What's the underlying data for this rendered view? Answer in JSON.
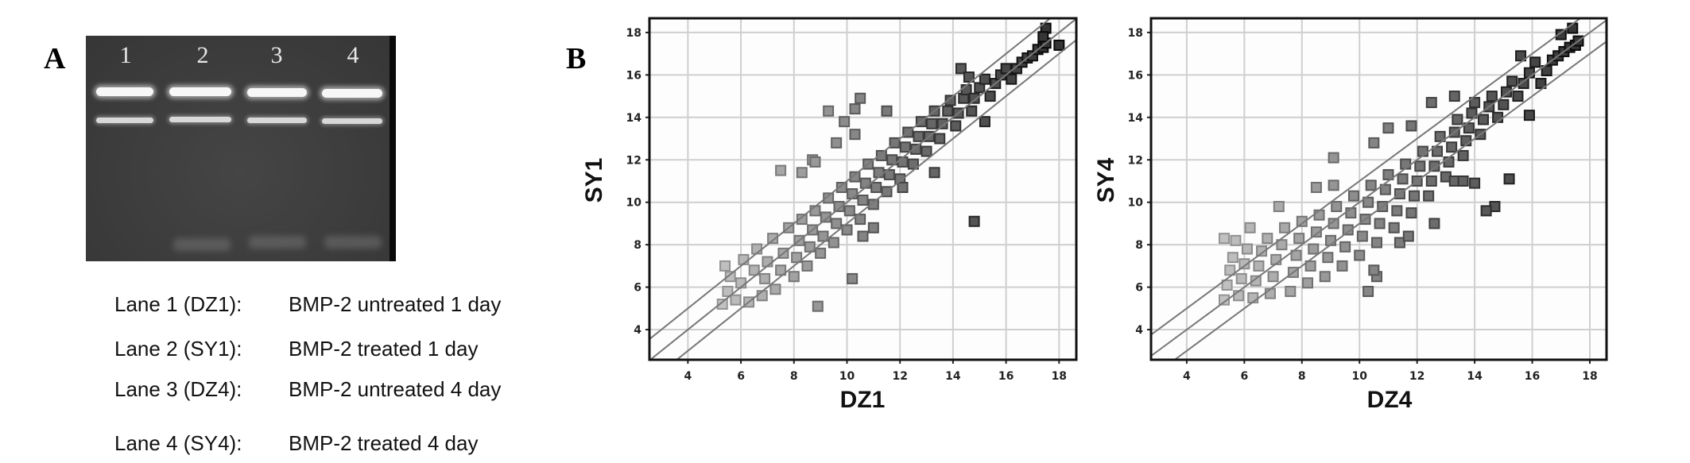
{
  "panel_a": {
    "label": "A",
    "lane_numbers": [
      "1",
      "2",
      "3",
      "4"
    ],
    "legend": [
      {
        "lane": "Lane 1 (DZ1):",
        "desc": "BMP-2 untreated 1 day"
      },
      {
        "lane": "Lane 2 (SY1):",
        "desc": "BMP-2 treated 1 day"
      },
      {
        "lane": "Lane 3 (DZ4):",
        "desc": "BMP-2 untreated 4 day"
      },
      {
        "lane": "Lane 4 (SY4):",
        "desc": "BMP-2 treated 4 day"
      }
    ]
  },
  "panel_b": {
    "label": "B"
  },
  "chart_data": [
    {
      "type": "scatter",
      "xlabel": "DZ1",
      "ylabel": "SY1",
      "xlim": [
        2.55,
        18.65
      ],
      "ylim": [
        2.58,
        18.67
      ],
      "xticks": [
        4,
        6,
        8,
        10,
        12,
        14,
        16,
        18
      ],
      "yticks": [
        4,
        6,
        8,
        10,
        12,
        14,
        16,
        18
      ],
      "grid": true,
      "reference_lines": [
        {
          "slope": 1,
          "intercept": 1
        },
        {
          "slope": 1,
          "intercept": 0
        },
        {
          "slope": 1,
          "intercept": -1
        }
      ],
      "marker": "square",
      "color_low": "#c4c4c4",
      "color_high": "#353535",
      "points": [
        [
          5.3,
          5.2
        ],
        [
          5.5,
          5.8
        ],
        [
          5.6,
          6.5
        ],
        [
          5.4,
          7.0
        ],
        [
          5.8,
          5.4
        ],
        [
          6.0,
          6.2
        ],
        [
          6.1,
          7.3
        ],
        [
          6.3,
          5.3
        ],
        [
          6.5,
          6.8
        ],
        [
          6.6,
          7.8
        ],
        [
          6.8,
          5.6
        ],
        [
          6.9,
          6.4
        ],
        [
          7.0,
          7.2
        ],
        [
          7.2,
          8.3
        ],
        [
          7.3,
          5.9
        ],
        [
          7.5,
          6.8
        ],
        [
          7.6,
          7.6
        ],
        [
          7.8,
          8.8
        ],
        [
          8.0,
          6.5
        ],
        [
          8.1,
          7.4
        ],
        [
          8.2,
          8.2
        ],
        [
          8.3,
          9.2
        ],
        [
          8.5,
          7.0
        ],
        [
          8.6,
          7.9
        ],
        [
          8.7,
          8.7
        ],
        [
          8.8,
          9.6
        ],
        [
          9.0,
          7.6
        ],
        [
          9.1,
          8.4
        ],
        [
          9.2,
          9.3
        ],
        [
          9.3,
          10.2
        ],
        [
          9.5,
          8.1
        ],
        [
          9.6,
          9.0
        ],
        [
          9.7,
          9.8
        ],
        [
          9.8,
          10.7
        ],
        [
          10.0,
          8.7
        ],
        [
          10.1,
          9.6
        ],
        [
          10.2,
          10.4
        ],
        [
          10.3,
          11.2
        ],
        [
          10.5,
          9.2
        ],
        [
          10.6,
          10.1
        ],
        [
          10.7,
          10.9
        ],
        [
          10.8,
          11.8
        ],
        [
          11.0,
          9.9
        ],
        [
          11.1,
          10.7
        ],
        [
          11.2,
          11.4
        ],
        [
          11.3,
          12.2
        ],
        [
          11.5,
          10.5
        ],
        [
          11.6,
          11.3
        ],
        [
          11.7,
          12.0
        ],
        [
          11.8,
          12.8
        ],
        [
          12.0,
          11.1
        ],
        [
          12.1,
          11.9
        ],
        [
          12.2,
          12.6
        ],
        [
          12.3,
          13.3
        ],
        [
          12.5,
          11.8
        ],
        [
          12.6,
          12.5
        ],
        [
          12.7,
          13.1
        ],
        [
          12.8,
          13.8
        ],
        [
          13.0,
          12.4
        ],
        [
          13.1,
          13.1
        ],
        [
          13.2,
          13.7
        ],
        [
          13.3,
          14.3
        ],
        [
          13.5,
          13.0
        ],
        [
          13.6,
          13.7
        ],
        [
          13.8,
          14.3
        ],
        [
          13.9,
          14.8
        ],
        [
          14.1,
          13.6
        ],
        [
          14.2,
          14.2
        ],
        [
          14.4,
          14.9
        ],
        [
          14.5,
          15.3
        ],
        [
          14.7,
          14.3
        ],
        [
          14.8,
          14.9
        ],
        [
          15.0,
          15.4
        ],
        [
          15.2,
          15.8
        ],
        [
          15.4,
          15.0
        ],
        [
          15.6,
          15.6
        ],
        [
          15.8,
          16.0
        ],
        [
          16.0,
          16.3
        ],
        [
          16.2,
          15.8
        ],
        [
          16.4,
          16.3
        ],
        [
          16.6,
          16.6
        ],
        [
          16.8,
          16.8
        ],
        [
          17.0,
          16.9
        ],
        [
          17.2,
          17.2
        ],
        [
          17.4,
          17.3
        ],
        [
          17.5,
          17.5
        ],
        [
          7.5,
          11.5
        ],
        [
          8.7,
          12.0
        ],
        [
          9.3,
          14.3
        ],
        [
          9.9,
          13.8
        ],
        [
          10.3,
          14.4
        ],
        [
          10.5,
          14.9
        ],
        [
          10.3,
          13.2
        ],
        [
          9.6,
          12.8
        ],
        [
          8.8,
          11.9
        ],
        [
          8.3,
          11.4
        ],
        [
          11.5,
          14.3
        ],
        [
          14.3,
          16.3
        ],
        [
          14.6,
          15.9
        ],
        [
          15.2,
          13.8
        ],
        [
          13.3,
          11.4
        ],
        [
          14.8,
          9.1
        ],
        [
          10.2,
          6.4
        ],
        [
          8.9,
          5.1
        ],
        [
          12.1,
          10.7
        ],
        [
          17.5,
          18.2
        ],
        [
          17.4,
          17.8
        ],
        [
          18.0,
          17.4
        ],
        [
          10.6,
          8.4
        ],
        [
          11.0,
          8.8
        ]
      ]
    },
    {
      "type": "scatter",
      "xlabel": "DZ4",
      "ylabel": "SY4",
      "xlim": [
        2.76,
        18.58
      ],
      "ylim": [
        2.58,
        18.67
      ],
      "xticks": [
        4,
        6,
        8,
        10,
        12,
        14,
        16,
        18
      ],
      "yticks": [
        4,
        6,
        8,
        10,
        12,
        14,
        16,
        18
      ],
      "grid": true,
      "reference_lines": [
        {
          "slope": 1,
          "intercept": 1
        },
        {
          "slope": 1,
          "intercept": 0
        },
        {
          "slope": 1,
          "intercept": -1
        }
      ],
      "marker": "square",
      "color_low": "#c4c4c4",
      "color_high": "#353535",
      "points": [
        [
          5.3,
          5.4
        ],
        [
          5.4,
          6.1
        ],
        [
          5.5,
          6.8
        ],
        [
          5.6,
          7.4
        ],
        [
          5.8,
          5.6
        ],
        [
          5.9,
          6.4
        ],
        [
          6.0,
          7.1
        ],
        [
          6.1,
          7.8
        ],
        [
          6.3,
          5.5
        ],
        [
          6.4,
          6.3
        ],
        [
          6.5,
          7.0
        ],
        [
          6.6,
          7.7
        ],
        [
          6.8,
          8.3
        ],
        [
          6.9,
          5.7
        ],
        [
          7.0,
          6.5
        ],
        [
          7.1,
          7.3
        ],
        [
          7.3,
          8.0
        ],
        [
          7.4,
          8.8
        ],
        [
          7.6,
          5.8
        ],
        [
          7.7,
          6.7
        ],
        [
          7.8,
          7.5
        ],
        [
          7.9,
          8.3
        ],
        [
          8.0,
          9.1
        ],
        [
          8.2,
          6.2
        ],
        [
          8.3,
          7.0
        ],
        [
          8.4,
          7.8
        ],
        [
          8.5,
          8.6
        ],
        [
          8.6,
          9.4
        ],
        [
          8.8,
          6.5
        ],
        [
          8.9,
          7.4
        ],
        [
          9.0,
          8.2
        ],
        [
          9.1,
          9.0
        ],
        [
          9.2,
          9.8
        ],
        [
          9.4,
          7.0
        ],
        [
          9.5,
          7.9
        ],
        [
          9.6,
          8.7
        ],
        [
          9.7,
          9.5
        ],
        [
          9.8,
          10.3
        ],
        [
          10.0,
          7.5
        ],
        [
          10.1,
          8.4
        ],
        [
          10.2,
          9.2
        ],
        [
          10.3,
          10.0
        ],
        [
          10.4,
          10.8
        ],
        [
          10.6,
          8.1
        ],
        [
          10.7,
          9.0
        ],
        [
          10.8,
          9.8
        ],
        [
          10.9,
          10.6
        ],
        [
          11.0,
          11.3
        ],
        [
          11.2,
          8.8
        ],
        [
          11.3,
          9.6
        ],
        [
          11.4,
          10.4
        ],
        [
          11.5,
          11.1
        ],
        [
          11.6,
          11.8
        ],
        [
          11.8,
          9.5
        ],
        [
          11.9,
          10.3
        ],
        [
          12.0,
          11.0
        ],
        [
          12.1,
          11.7
        ],
        [
          12.2,
          12.4
        ],
        [
          12.4,
          10.3
        ],
        [
          12.5,
          11.0
        ],
        [
          12.6,
          11.7
        ],
        [
          12.7,
          12.4
        ],
        [
          12.8,
          13.1
        ],
        [
          13.0,
          11.2
        ],
        [
          13.1,
          11.9
        ],
        [
          13.2,
          12.6
        ],
        [
          13.3,
          13.3
        ],
        [
          13.4,
          13.9
        ],
        [
          13.6,
          12.2
        ],
        [
          13.7,
          12.9
        ],
        [
          13.8,
          13.5
        ],
        [
          13.9,
          14.2
        ],
        [
          14.0,
          14.7
        ],
        [
          14.2,
          13.2
        ],
        [
          14.3,
          13.9
        ],
        [
          14.5,
          14.5
        ],
        [
          14.6,
          15.0
        ],
        [
          14.8,
          14.0
        ],
        [
          15.0,
          14.6
        ],
        [
          15.1,
          15.2
        ],
        [
          15.3,
          15.7
        ],
        [
          15.5,
          15.0
        ],
        [
          15.7,
          15.6
        ],
        [
          15.9,
          16.1
        ],
        [
          16.1,
          16.6
        ],
        [
          16.3,
          15.6
        ],
        [
          16.5,
          16.2
        ],
        [
          16.7,
          16.7
        ],
        [
          16.9,
          16.9
        ],
        [
          17.1,
          17.1
        ],
        [
          17.3,
          17.3
        ],
        [
          17.5,
          17.4
        ],
        [
          17.6,
          17.6
        ],
        [
          5.3,
          8.3
        ],
        [
          5.7,
          8.2
        ],
        [
          6.2,
          8.8
        ],
        [
          7.2,
          9.8
        ],
        [
          8.5,
          10.7
        ],
        [
          9.1,
          10.8
        ],
        [
          9.1,
          12.1
        ],
        [
          10.5,
          12.8
        ],
        [
          11.0,
          13.5
        ],
        [
          11.8,
          13.6
        ],
        [
          12.5,
          14.7
        ],
        [
          13.3,
          15.0
        ],
        [
          15.6,
          16.9
        ],
        [
          17.4,
          18.2
        ],
        [
          17.0,
          17.9
        ],
        [
          15.9,
          14.1
        ],
        [
          15.2,
          11.1
        ],
        [
          14.7,
          9.8
        ],
        [
          14.4,
          9.6
        ],
        [
          14.0,
          10.9
        ],
        [
          13.3,
          11.0
        ],
        [
          13.6,
          11.0
        ],
        [
          12.6,
          9.0
        ],
        [
          11.4,
          8.1
        ],
        [
          11.7,
          8.4
        ],
        [
          10.3,
          5.8
        ],
        [
          10.6,
          6.5
        ],
        [
          10.5,
          6.8
        ]
      ]
    }
  ]
}
